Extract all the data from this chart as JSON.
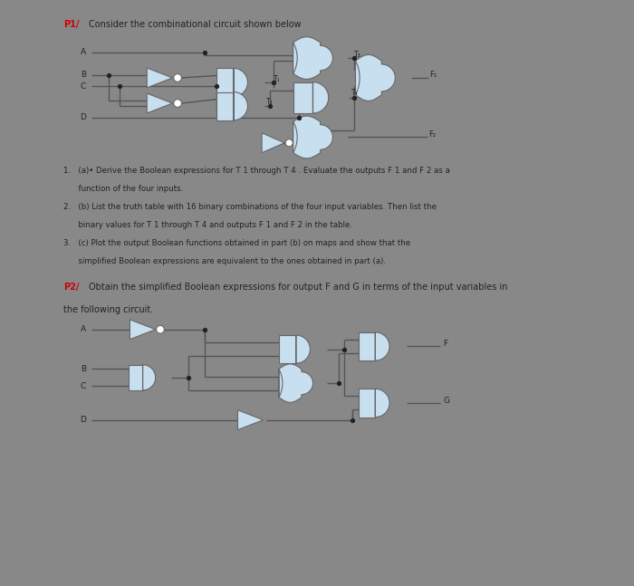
{
  "background_color": "#f5f5f5",
  "page_bg": "#888888",
  "gate_fill": "#c8dff0",
  "gate_edge": "#666666",
  "wire_color": "#555555",
  "dot_color": "#222222",
  "text_color": "#222222",
  "red_color": "#cc0000",
  "p1_title": "P1/",
  "p1_subtitle": " Consider the combinational circuit shown below",
  "p2_title": "P2/",
  "p2_subtitle": " Obtain the simplified Boolean expressions for output F and G in terms of the input variables in",
  "p2_subtitle2": "the following circuit.",
  "item1": "1.   (a)• Derive the Boolean expressions for T 1 through T 4 . Evaluate the outputs F 1 and F 2 as a",
  "item1b": "      function of the four inputs.",
  "item2": "2.   (b) List the truth table with 16 binary combinations of the four input variables. Then list the",
  "item2b": "      binary values for T 1 through T 4 and outputs F 1 and F 2 in the table.",
  "item3": "3.   (c) Plot the output Boolean functions obtained in part (b) on maps and show that the",
  "item3b": "      simplified Boolean expressions are equivalent to the ones obtained in part (a)."
}
